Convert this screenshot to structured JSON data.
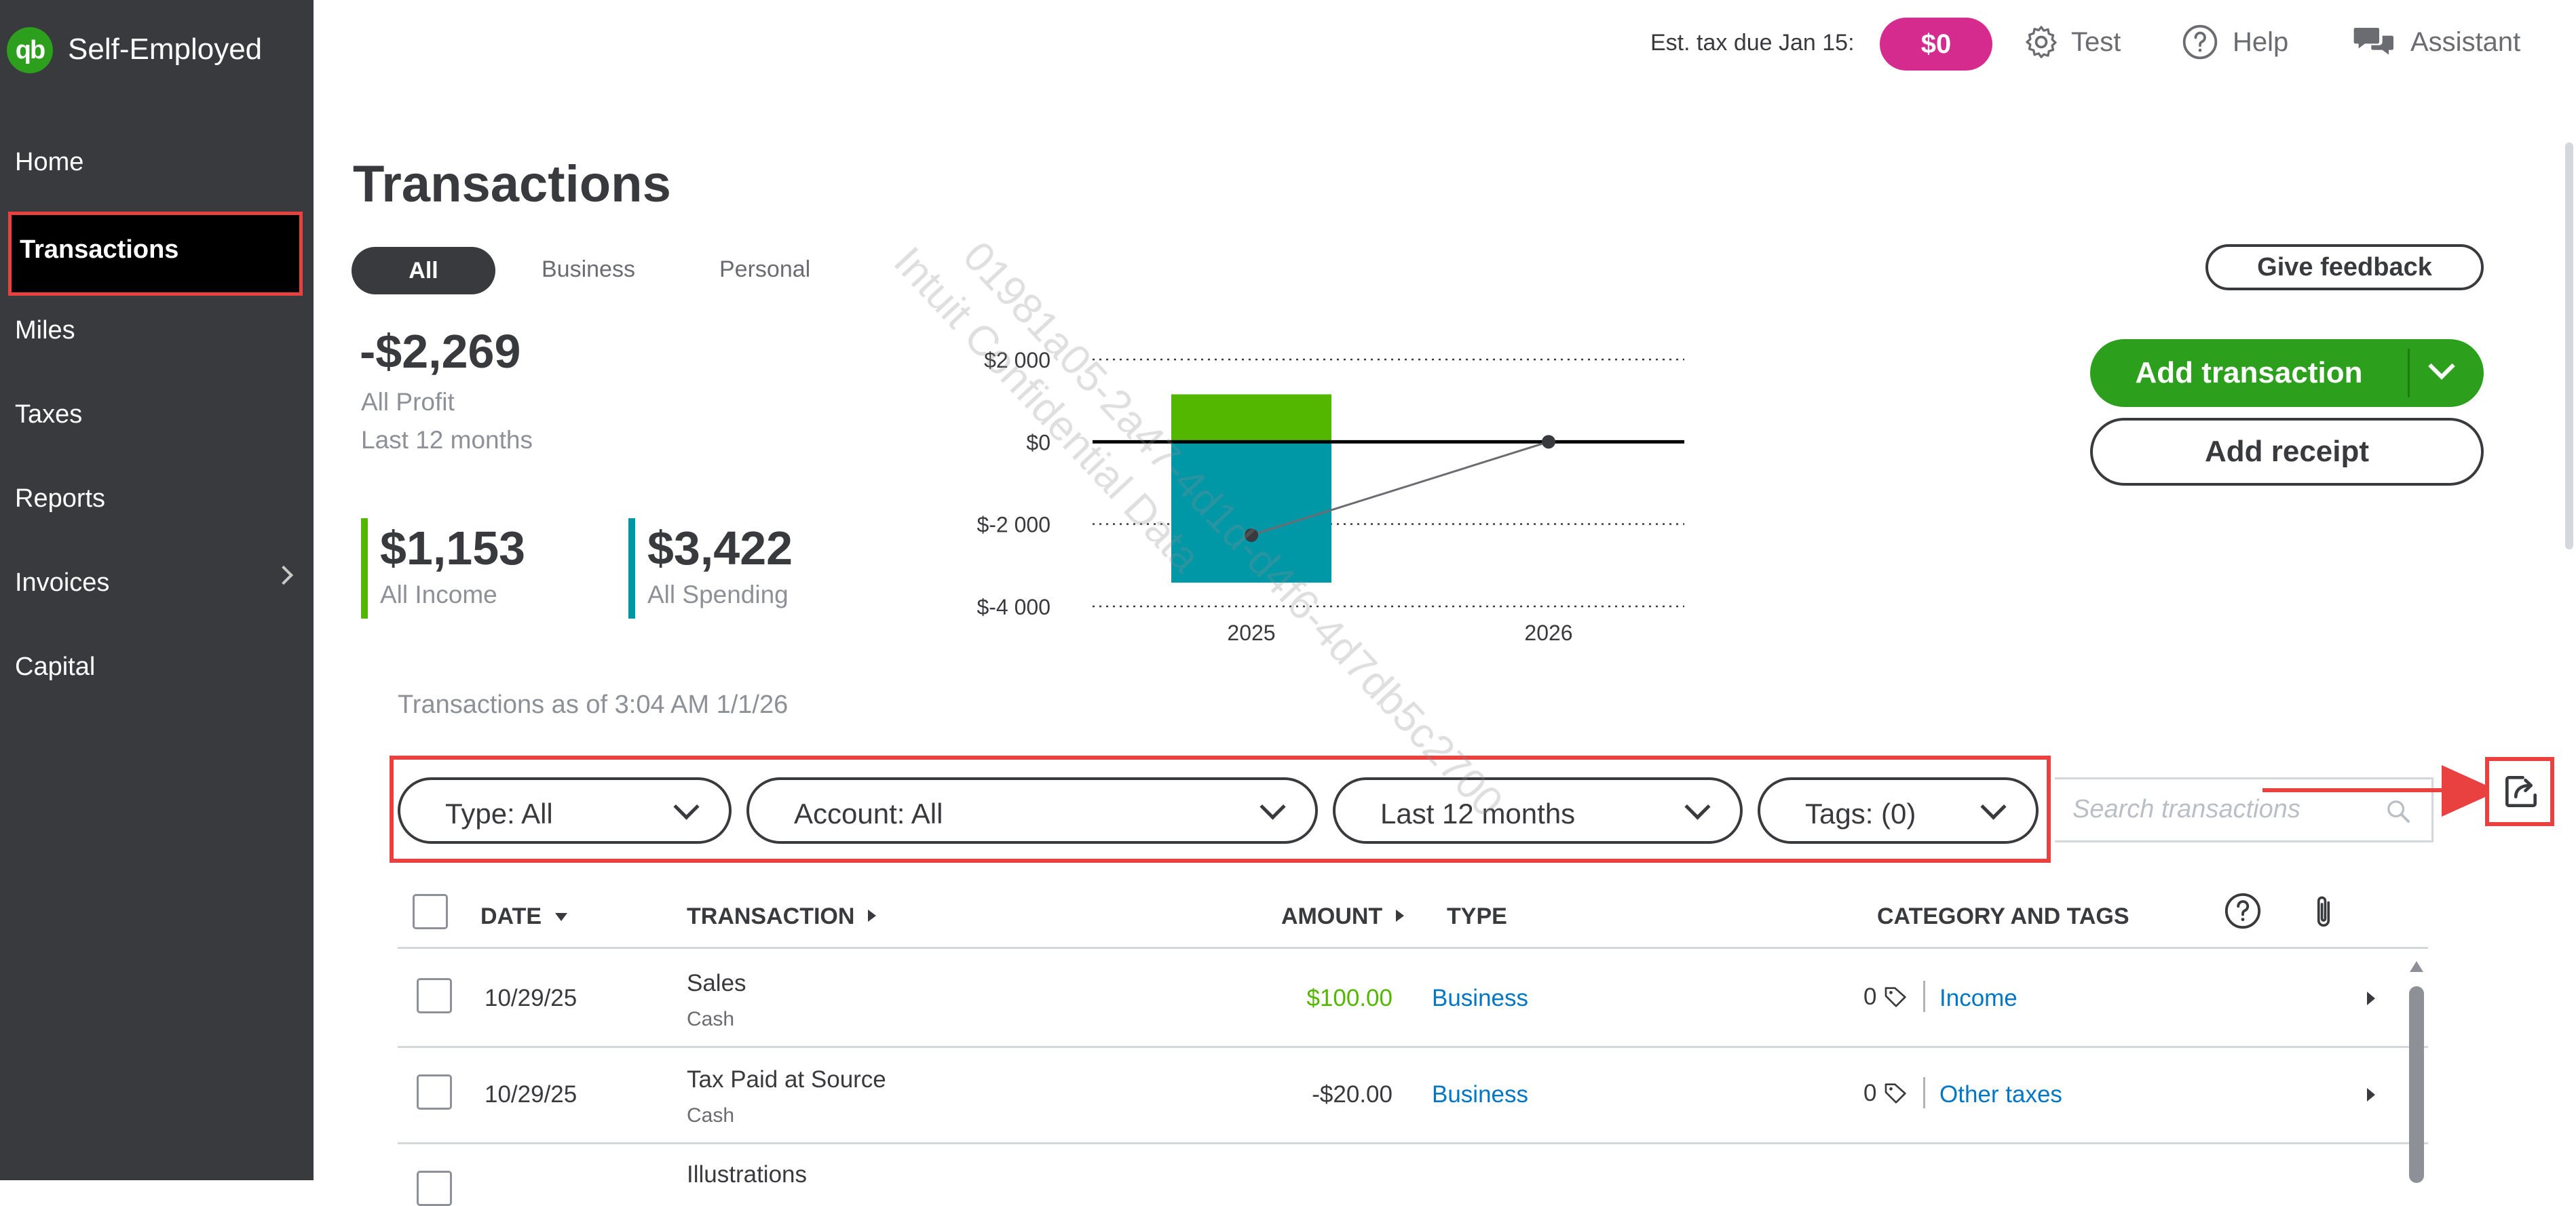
{
  "app": {
    "name": "Self-Employed",
    "logo_text": "qb"
  },
  "sidebar": {
    "items": [
      {
        "label": "Home"
      },
      {
        "label": "Transactions"
      },
      {
        "label": "Miles"
      },
      {
        "label": "Taxes"
      },
      {
        "label": "Reports"
      },
      {
        "label": "Invoices"
      },
      {
        "label": "Capital"
      }
    ]
  },
  "header": {
    "est_tax_label": "Est. tax due Jan 15:",
    "est_tax_value": "$0",
    "test_label": "Test",
    "help_label": "Help",
    "assistant_label": "Assistant"
  },
  "page": {
    "title": "Transactions",
    "filters": [
      "All",
      "Business",
      "Personal"
    ],
    "active_filter": "All"
  },
  "summary": {
    "profit_value": "-$2,269",
    "profit_label": "All Profit",
    "period_label": "Last 12 months",
    "income_value": "$1,153",
    "income_label": "All Income",
    "spending_value": "$3,422",
    "spending_label": "All Spending",
    "income_color": "#53b700",
    "spending_color": "#0097a7"
  },
  "chart_data": {
    "type": "bar",
    "categories": [
      "2025",
      "2026"
    ],
    "series": [
      {
        "name": "All Income",
        "values": [
          1153,
          0
        ],
        "color": "#53b700"
      },
      {
        "name": "All Spending",
        "values": [
          -3422,
          0
        ],
        "color": "#0097a7"
      }
    ],
    "profit_line": {
      "values": [
        -2269,
        0
      ]
    },
    "yticks": [
      2000,
      0,
      -2000,
      -4000
    ],
    "ytick_labels": [
      "$2 000",
      "$0",
      "$-2 000",
      "$-4 000"
    ],
    "ylim": [
      -4000,
      2000
    ],
    "grid": true,
    "title": "",
    "xlabel": "",
    "ylabel": ""
  },
  "actions": {
    "feedback_label": "Give feedback",
    "add_transaction_label": "Add transaction",
    "add_receipt_label": "Add receipt"
  },
  "list": {
    "as_of": "Transactions as of 3:04 AM 1/1/26",
    "filters": {
      "type": "Type: All",
      "account": "Account: All",
      "period": "Last 12 months",
      "tags": "Tags: (0)"
    },
    "search_placeholder": "Search transactions"
  },
  "table": {
    "headers": {
      "date": "DATE",
      "transaction": "TRANSACTION",
      "amount": "AMOUNT",
      "type": "TYPE",
      "category": "CATEGORY AND TAGS"
    },
    "rows": [
      {
        "date": "10/29/25",
        "name": "Sales",
        "account": "Cash",
        "amount": "$100.00",
        "amount_color": "#53b700",
        "type": "Business",
        "tag_count": "0",
        "category": "Income"
      },
      {
        "date": "10/29/25",
        "name": "Tax Paid at Source",
        "account": "Cash",
        "amount": "-$20.00",
        "amount_color": "#393a3d",
        "type": "Business",
        "tag_count": "0",
        "category": "Other taxes"
      },
      {
        "date": "",
        "name": "Illustrations",
        "account": "",
        "amount": "",
        "amount_color": "#393a3d",
        "type": "",
        "tag_count": "",
        "category": ""
      }
    ]
  },
  "watermark": {
    "line1": "01981a05-2a47-4d1d-d4f6-4d7db5c2700",
    "line2": "Intuit Confidential Data"
  }
}
